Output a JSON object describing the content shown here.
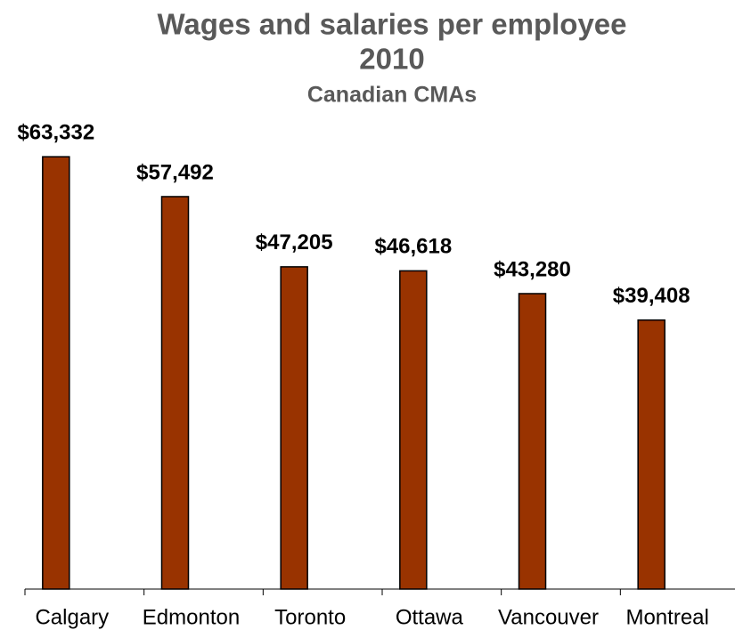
{
  "chart_data": {
    "type": "bar",
    "title": [
      "Wages and salaries per employee",
      "2010"
    ],
    "subtitle": "Canadian CMAs",
    "categories": [
      "Calgary",
      "Edmonton",
      "Toronto",
      "Ottawa",
      "Vancouver",
      "Montreal"
    ],
    "values": [
      63332,
      57492,
      47205,
      46618,
      43280,
      39408
    ],
    "value_labels": [
      "$63,332",
      "$57,492",
      "$47,205",
      "$46,618",
      "$43,280",
      "$39,408"
    ],
    "color": "#993300",
    "ylim": [
      0,
      70000
    ]
  }
}
